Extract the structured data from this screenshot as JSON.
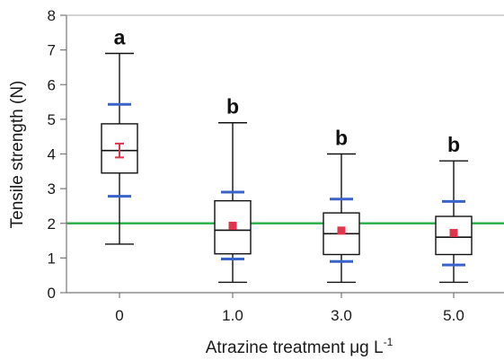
{
  "chart_data": {
    "type": "box",
    "xlabel_main": "Atrazine treatment μg L",
    "xlabel_superscript": "-1",
    "ylabel": "Tensile strength (N)",
    "ylim": [
      0,
      8
    ],
    "yticks": [
      0,
      1,
      2,
      3,
      4,
      5,
      6,
      7,
      8
    ],
    "reference_line": {
      "value": 2.0,
      "color": "#2db34a"
    },
    "colors": {
      "box": "#111111",
      "whisker_marks": "#3a63c9",
      "mean": "#e0354a"
    },
    "grid": false,
    "groups": [
      {
        "category": "0",
        "letter": "a",
        "min": 1.4,
        "q1": 3.45,
        "median": 4.1,
        "q3": 4.87,
        "max": 6.9,
        "mean": 4.1,
        "mean_err": [
          3.9,
          4.3
        ],
        "marks": [
          2.78,
          5.43
        ]
      },
      {
        "category": "1.0",
        "letter": "b",
        "min": 0.3,
        "q1": 1.12,
        "median": 1.8,
        "q3": 2.65,
        "max": 4.9,
        "mean": 1.93,
        "mean_err": null,
        "marks": [
          0.97,
          2.9
        ]
      },
      {
        "category": "3.0",
        "letter": "b",
        "min": 0.3,
        "q1": 1.1,
        "median": 1.7,
        "q3": 2.3,
        "max": 4.0,
        "mean": 1.79,
        "mean_err": null,
        "marks": [
          0.9,
          2.7
        ]
      },
      {
        "category": "5.0",
        "letter": "b",
        "min": 0.3,
        "q1": 1.1,
        "median": 1.6,
        "q3": 2.2,
        "max": 3.8,
        "mean": 1.72,
        "mean_err": null,
        "marks": [
          0.8,
          2.63
        ]
      }
    ]
  }
}
